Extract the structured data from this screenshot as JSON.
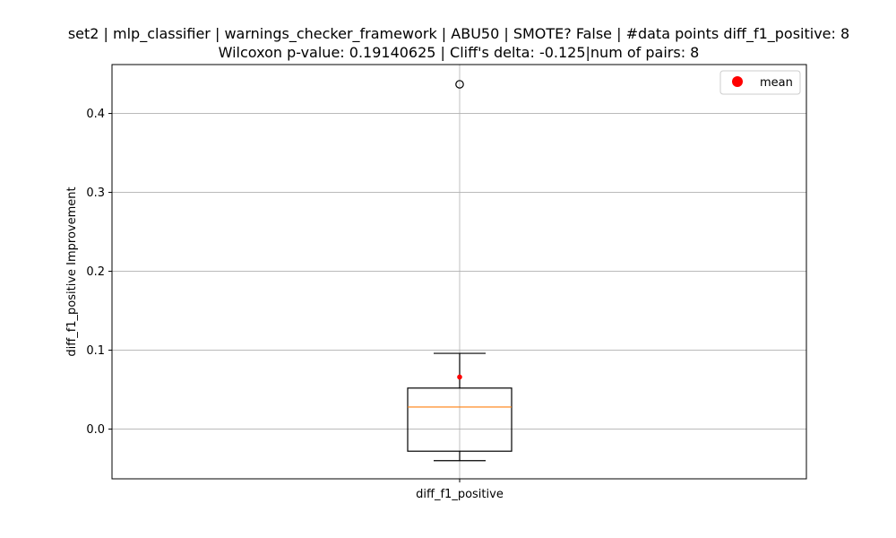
{
  "chart_data": {
    "type": "box",
    "title_line1": "set2 | mlp_classifier | warnings_checker_framework | ABU50 | SMOTE? False | #data points diff_f1_positive: 8",
    "title_line2": "Wilcoxon p-value: 0.19140625 | Cliff's delta: -0.125|num of pairs: 8",
    "ylabel": "diff_f1_positive Improvement",
    "categories": [
      "diff_f1_positive"
    ],
    "ylim": [
      -0.063,
      0.462
    ],
    "yticks": [
      0.0,
      0.1,
      0.2,
      0.3,
      0.4
    ],
    "ytick_labels": [
      "0.0",
      "0.1",
      "0.2",
      "0.3",
      "0.4"
    ],
    "grid": true,
    "legend": {
      "position": "top-right",
      "entries": [
        "mean"
      ]
    },
    "box": {
      "whisker_low": -0.04,
      "q1": -0.028,
      "median": 0.028,
      "q3": 0.052,
      "whisker_high": 0.096,
      "mean": 0.066,
      "outliers": [
        0.437
      ]
    },
    "colors": {
      "box": "#000000",
      "median": "#ff7f0e",
      "mean": "#ff0000",
      "grid": "#b0b0b0"
    }
  }
}
